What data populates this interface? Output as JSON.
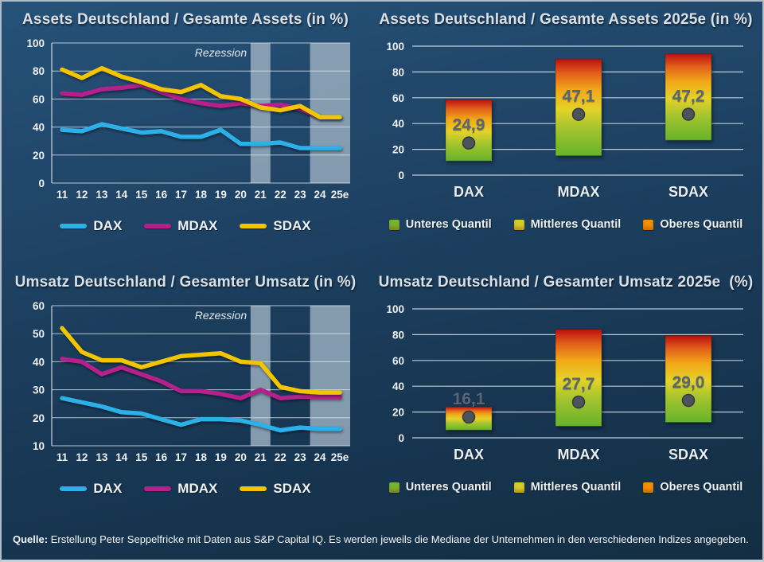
{
  "page": {
    "caption_prefix": "Quelle:",
    "caption_text": " Erstellung Peter Seppelfricke mit Daten aus S&P Capital IQ. Es werden jeweils die Mediane der Unternehmen in den verschiedenen Indizes angegeben."
  },
  "colors": {
    "dax": "#2bb0e8",
    "mdax": "#b5208c",
    "sdax": "#f2c500",
    "recession_band": "#9cb0c1",
    "gridline": "#dde5ec",
    "bar_gradient_bottom_green": "#66b32b",
    "bar_gradient_yellow": "#e4d229",
    "bar_gradient_orange": "#f2a818",
    "bar_gradient_top_red": "#bd0f10",
    "median_marker": "#4d535b",
    "value_label": "#5b6673",
    "quantile_legend": [
      "#72b62e",
      "#d4cc2b",
      "#f28e00"
    ]
  },
  "chart_data": [
    {
      "type": "line",
      "title": "Assets Deutschland / Gesamte Assets (in %)",
      "x": [
        "11",
        "12",
        "13",
        "14",
        "15",
        "16",
        "17",
        "18",
        "19",
        "20",
        "21",
        "22",
        "23",
        "24",
        "25e"
      ],
      "ylim": [
        0,
        100
      ],
      "yticks": [
        0,
        20,
        40,
        60,
        80,
        100
      ],
      "annotation": "Rezession",
      "recession_bands": [
        [
          9.5,
          10.5
        ],
        [
          12.5,
          14.7
        ]
      ],
      "grid": true,
      "legend_position": "bottom",
      "series": [
        {
          "name": "DAX",
          "color": "#2bb0e8",
          "values": [
            38,
            37,
            42,
            39,
            36,
            37,
            33,
            33,
            38,
            28,
            28,
            29,
            25,
            25,
            25
          ]
        },
        {
          "name": "MDAX",
          "color": "#b5208c",
          "values": [
            64,
            63,
            67,
            68,
            70,
            65,
            60,
            57,
            55,
            57,
            55,
            56,
            53,
            47,
            47
          ]
        },
        {
          "name": "SDAX",
          "color": "#f2c500",
          "values": [
            81,
            75,
            82,
            76,
            72,
            67,
            65,
            70,
            62,
            60,
            54,
            52,
            55,
            47,
            47
          ]
        }
      ]
    },
    {
      "type": "range-bar",
      "title": "Assets Deutschland / Gesamte Assets 2025e (in %)",
      "categories": [
        "DAX",
        "MDAX",
        "SDAX"
      ],
      "ylim": [
        0,
        100
      ],
      "yticks": [
        0,
        20,
        40,
        60,
        80,
        100
      ],
      "grid": true,
      "legend_position": "bottom",
      "legend": [
        "Unteres Quantil",
        "Mittleres Quantil",
        "Oberes Quantil"
      ],
      "bars": [
        {
          "low": 11,
          "high": 58.5,
          "median": 24.9,
          "label": "24,9"
        },
        {
          "low": 15,
          "high": 90,
          "median": 47.1,
          "label": "47,1"
        },
        {
          "low": 27,
          "high": 94,
          "median": 47.2,
          "label": "47,2"
        }
      ]
    },
    {
      "type": "line",
      "title": "Umsatz Deutschland / Gesamter Umsatz (in %)",
      "x": [
        "11",
        "12",
        "13",
        "14",
        "15",
        "16",
        "17",
        "18",
        "19",
        "20",
        "21",
        "22",
        "23",
        "24",
        "25e"
      ],
      "ylim": [
        10,
        60
      ],
      "yticks": [
        10,
        20,
        30,
        40,
        50,
        60
      ],
      "annotation": "Rezession",
      "recession_bands": [
        [
          9.5,
          10.5
        ],
        [
          12.5,
          14.7
        ]
      ],
      "grid": true,
      "legend_position": "bottom",
      "series": [
        {
          "name": "DAX",
          "color": "#2bb0e8",
          "values": [
            27,
            25.5,
            24,
            22,
            21.5,
            19.5,
            17.5,
            19.5,
            19.5,
            19,
            17.5,
            15.5,
            16.5,
            16,
            16
          ]
        },
        {
          "name": "MDAX",
          "color": "#b5208c",
          "values": [
            41,
            40,
            35.5,
            38,
            35.5,
            33,
            29.5,
            29.5,
            28.5,
            27,
            30,
            27,
            27.5,
            27.5,
            27.5
          ]
        },
        {
          "name": "SDAX",
          "color": "#f2c500",
          "values": [
            52,
            43.5,
            40.5,
            40.5,
            38,
            40,
            42,
            42.5,
            43,
            40,
            39.5,
            31,
            29.5,
            29,
            29
          ]
        }
      ]
    },
    {
      "type": "range-bar",
      "title": "Umsatz Deutschland / Gesamter Umsatz 2025e  (%)",
      "categories": [
        "DAX",
        "MDAX",
        "SDAX"
      ],
      "ylim": [
        0,
        100
      ],
      "yticks": [
        0,
        20,
        40,
        60,
        80,
        100
      ],
      "grid": true,
      "legend_position": "bottom",
      "legend": [
        "Unteres Quantil",
        "Mittleres Quantil",
        "Oberes Quantil"
      ],
      "bars": [
        {
          "low": 6,
          "high": 24,
          "median": 16.1,
          "label": "16,1"
        },
        {
          "low": 9,
          "high": 84,
          "median": 27.7,
          "label": "27,7"
        },
        {
          "low": 12,
          "high": 79,
          "median": 29.0,
          "label": "29,0"
        }
      ]
    }
  ]
}
